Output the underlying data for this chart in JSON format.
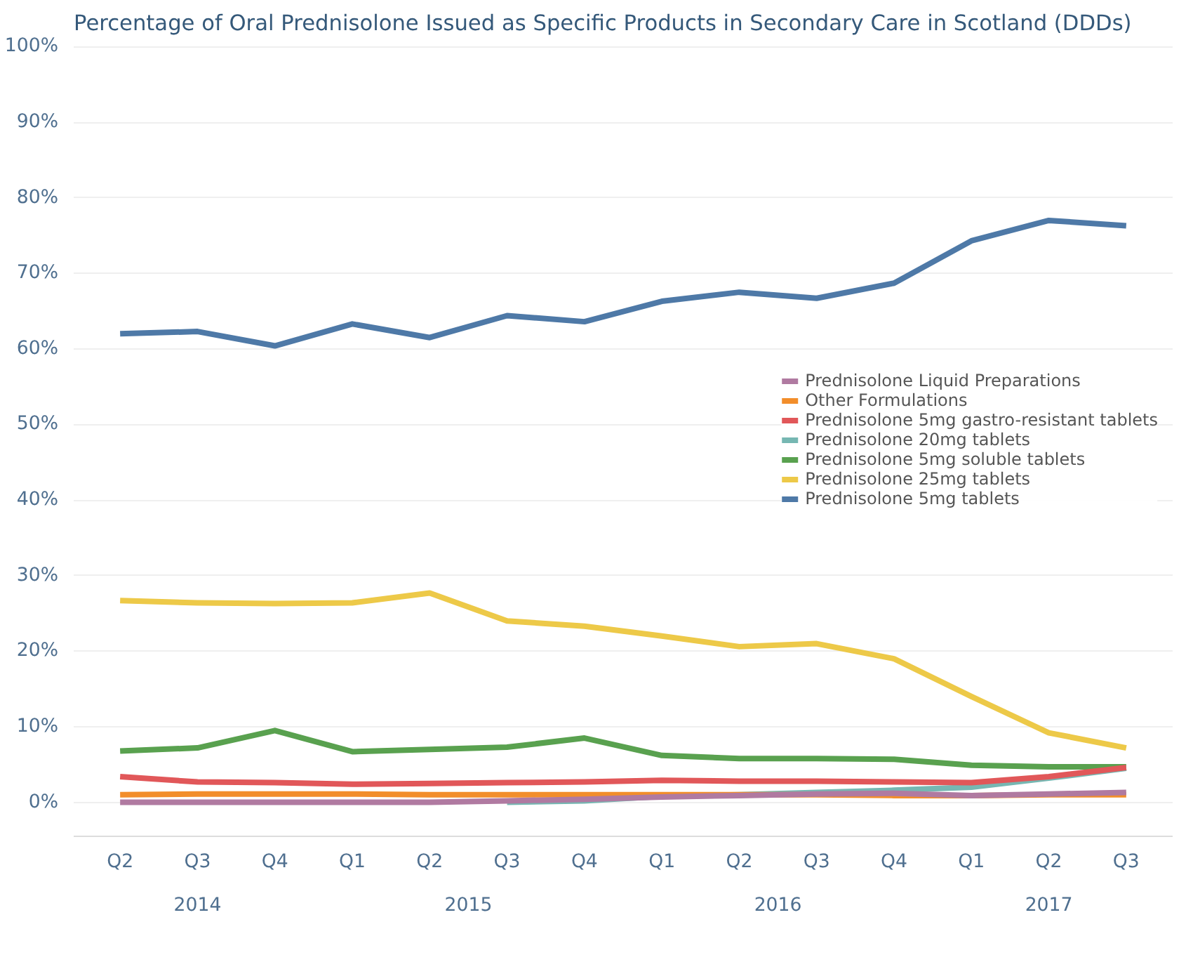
{
  "chart_data": {
    "type": "line",
    "title": "Percentage of Oral Prednisolone Issued as Specific Products in Secondary Care in Scotland (DDDs)",
    "categories": [
      "Q2",
      "Q3",
      "Q4",
      "Q1",
      "Q2",
      "Q3",
      "Q4",
      "Q1",
      "Q2",
      "Q3",
      "Q4",
      "Q1",
      "Q2",
      "Q3"
    ],
    "annotations": [
      "2014",
      "2015",
      "2016",
      "2017"
    ],
    "ylim": [
      -4.5,
      100.5
    ],
    "yticks": [
      {
        "value": 0,
        "label": "0%"
      },
      {
        "value": 10,
        "label": "10%"
      },
      {
        "value": 20,
        "label": "20%"
      },
      {
        "value": 30,
        "label": "30%"
      },
      {
        "value": 40,
        "label": "40%"
      },
      {
        "value": 50,
        "label": "50%"
      },
      {
        "value": 60,
        "label": "60%"
      },
      {
        "value": 70,
        "label": "70%"
      },
      {
        "value": 80,
        "label": "80%"
      },
      {
        "value": 90,
        "label": "90%"
      },
      {
        "value": 100,
        "label": "100%"
      }
    ],
    "grid": "y",
    "legend": "right",
    "marker": "none",
    "line_style": "solid",
    "series": [
      {
        "name": "Prednisolone Liquid Preparations",
        "color": "#b07aa1",
        "values": [
          0,
          0,
          0,
          0,
          0,
          0.2,
          0.4,
          0.7,
          0.9,
          1.1,
          1.2,
          0.9,
          1.1,
          1.3
        ]
      },
      {
        "name": "Other Formulations",
        "color": "#f28e2b",
        "values": [
          1.0,
          1.1,
          1.1,
          1.1,
          1.0,
          1.0,
          1.0,
          1.0,
          1.0,
          1.0,
          0.9,
          0.9,
          1.0,
          1.0
        ]
      },
      {
        "name": "Prednisolone 5mg gastro-resistant tablets",
        "color": "#e15759",
        "values": [
          3.4,
          2.7,
          2.6,
          2.4,
          2.5,
          2.6,
          2.7,
          2.9,
          2.8,
          2.8,
          2.7,
          2.6,
          3.4,
          4.6
        ]
      },
      {
        "name": "Prednisolone 20mg tablets",
        "color": "#76b7b2",
        "values": [
          null,
          null,
          null,
          null,
          null,
          0,
          0.2,
          0.8,
          1.0,
          1.3,
          1.6,
          2.0,
          3.2,
          4.5
        ]
      },
      {
        "name": "Prednisolone 5mg soluble tablets",
        "color": "#59a14f",
        "values": [
          6.8,
          7.2,
          9.5,
          6.7,
          7.0,
          7.3,
          8.5,
          6.2,
          5.8,
          5.8,
          5.7,
          4.9,
          4.7,
          4.7
        ]
      },
      {
        "name": "Prednisolone 25mg tablets",
        "color": "#edc948",
        "values": [
          26.7,
          26.4,
          26.3,
          26.4,
          27.7,
          24.0,
          23.3,
          22.0,
          20.6,
          21.0,
          19.0,
          14.0,
          9.2,
          7.2
        ]
      },
      {
        "name": "Prednisolone 5mg tablets",
        "color": "#4e79a7",
        "values": [
          62.0,
          62.3,
          60.4,
          63.3,
          61.5,
          64.4,
          63.6,
          66.3,
          67.5,
          66.7,
          68.7,
          74.3,
          77.0,
          76.3
        ]
      }
    ]
  }
}
